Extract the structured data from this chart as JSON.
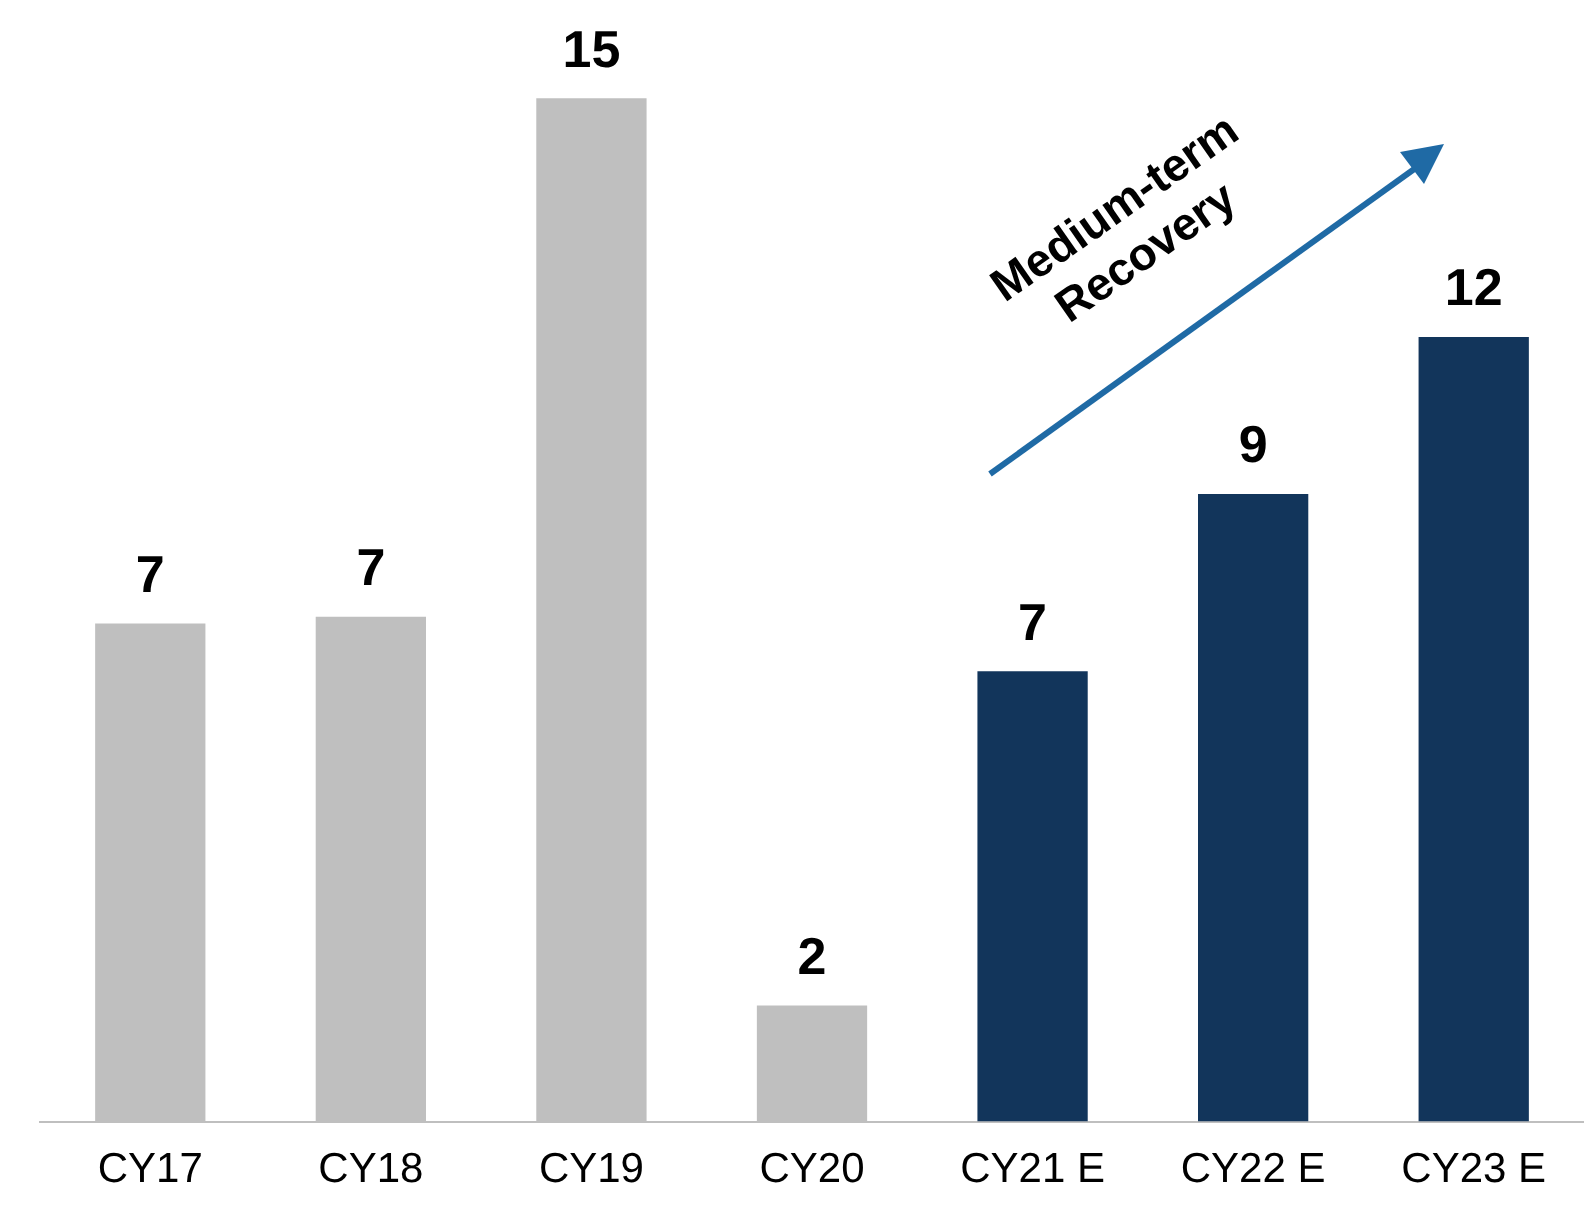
{
  "chart_data": {
    "type": "bar",
    "categories": [
      "CY17",
      "CY18",
      "CY19",
      "CY20",
      "CY21 E",
      "CY22 E",
      "CY23 E"
    ],
    "values": [
      7.3,
      7.4,
      15,
      1.7,
      6.6,
      9.2,
      11.5
    ],
    "value_labels": [
      "7",
      "7",
      "15",
      "2",
      "7",
      "9",
      "12"
    ],
    "colors": [
      "#bfbfbf",
      "#bfbfbf",
      "#bfbfbf",
      "#bfbfbf",
      "#12355b",
      "#12355b",
      "#12355b"
    ],
    "grid": false,
    "legend": false,
    "annotations": [
      "Medium-term Recovery"
    ]
  }
}
